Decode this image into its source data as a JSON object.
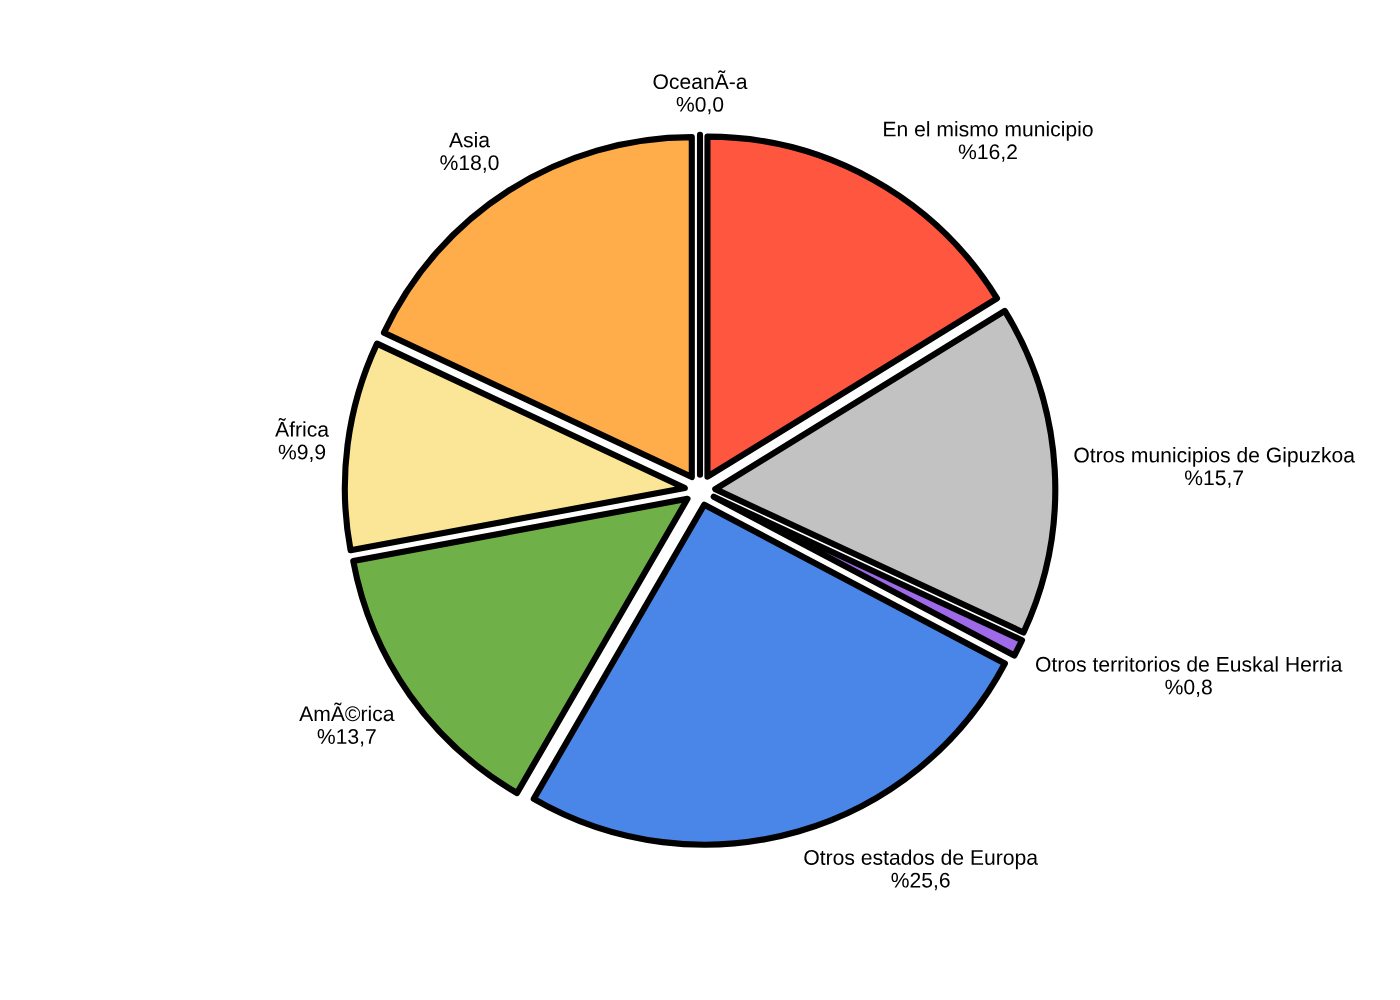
{
  "chart_data": {
    "type": "pie",
    "categories": [
      "En el mismo municipio",
      "Otros municipios de Gipuzkoa",
      "Otros territorios de Euskal Herria",
      "Otros estados de Europa",
      "AmÃ©rica",
      "Ãfrica",
      "Asia",
      "OceanÃ-a"
    ],
    "values": [
      16.2,
      15.7,
      0.8,
      25.6,
      13.7,
      9.9,
      18.0,
      0.0
    ],
    "value_labels": [
      "%16,2",
      "%15,7",
      "%0,8",
      "%25,6",
      "%13,7",
      "%9,9",
      "%18,0",
      "%0,0"
    ],
    "colors": [
      "#ff573f",
      "#c2c2c2",
      "#9e6ae8",
      "#4a86e8",
      "#70b048",
      "#fbe698",
      "#ffad4a",
      "#5a9bd4"
    ]
  }
}
